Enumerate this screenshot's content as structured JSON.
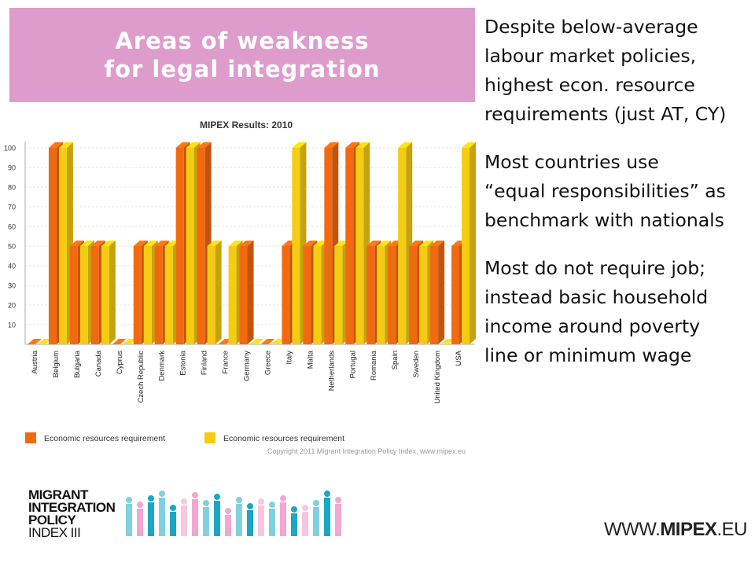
{
  "header": {
    "title_line1": "Areas of weakness",
    "title_line2": "for legal integration"
  },
  "bullets": [
    {
      "lines": [
        "Despite below-average",
        "labour market policies,",
        "highest econ. resource",
        "requirements (just AT, CY)"
      ]
    },
    {
      "lines": [
        "Most countries use",
        "“equal responsibilities” as",
        "benchmark with nationals"
      ]
    },
    {
      "lines": [
        "Most do not require job;",
        "instead basic household",
        "income around poverty",
        "line or minimum wage"
      ]
    }
  ],
  "chart_data": {
    "type": "bar",
    "title": "MIPEX Results: 2010",
    "categories": [
      "Austria",
      "Belgium",
      "Bulgaria",
      "Canada",
      "Cyprus",
      "Czech Republic",
      "Denmark",
      "Estonia",
      "Finland",
      "France",
      "Germany",
      "Greece",
      "Italy",
      "Malta",
      "Netherlands",
      "Portugal",
      "Romania",
      "Spain",
      "Sweden",
      "United Kingdom",
      "USA"
    ],
    "series": [
      {
        "name": "Economic resources requirement",
        "color": "#f26a10",
        "values": [
          0,
          100,
          50,
          50,
          0,
          50,
          50,
          100,
          100,
          0,
          50,
          0,
          50,
          50,
          100,
          100,
          50,
          50,
          50,
          50,
          50
        ]
      },
      {
        "name": "Economic resources requirement",
        "color": "#f5cc12",
        "values": [
          0,
          100,
          50,
          50,
          0,
          50,
          50,
          100,
          50,
          50,
          0,
          0,
          100,
          50,
          50,
          100,
          50,
          100,
          50,
          0,
          100
        ]
      }
    ],
    "ylim": [
      0,
      100
    ],
    "yticks": [
      10,
      20,
      30,
      40,
      50,
      60,
      70,
      80,
      90,
      100
    ],
    "grid": true,
    "legend": "bottom-left",
    "copyright": "Copyright 2011 Migrant Integration Policy Index, www.mipex.eu",
    "xlabel": "",
    "ylabel": ""
  },
  "footer": {
    "logo_lines": [
      "MIGRANT",
      "INTEGRATION",
      "POLICY",
      "INDEX III"
    ],
    "website_prefix": "WWW.",
    "website_bold": "MIPEX",
    "website_suffix": ".EU"
  }
}
